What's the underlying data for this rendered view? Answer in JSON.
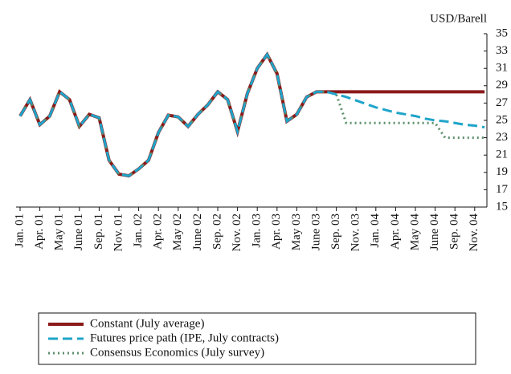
{
  "chart_data": {
    "type": "line",
    "y_axis_label": "USD/Barell",
    "categories": [
      "Jan. 01",
      null,
      "Apr. 01",
      null,
      "May 01",
      null,
      "June 01",
      null,
      "Sep. 01",
      null,
      "Nov. 01",
      null,
      "Jan. 02",
      null,
      "Apr. 02",
      null,
      "May 02",
      null,
      "June 02",
      null,
      "Sep. 02",
      null,
      "Nov. 02",
      null,
      "Jan. 03",
      null,
      "Apr. 03",
      null,
      "May 03",
      null,
      "June 03",
      null,
      "Sep. 03",
      null,
      "Nov. 03",
      null,
      "Jan. 04",
      null,
      "Apr. 04",
      null,
      "May 04",
      null,
      "June 04",
      null,
      "Sep. 04",
      null,
      "Nov. 04",
      null
    ],
    "series": [
      {
        "name": "Constant (July average)",
        "color": "#8b1a1a",
        "dash": "solid",
        "values": [
          25.5,
          27.4,
          24.5,
          25.5,
          28.3,
          27.4,
          24.3,
          25.7,
          25.3,
          20.4,
          18.8,
          18.6,
          19.4,
          20.4,
          23.6,
          25.6,
          25.4,
          24.3,
          25.7,
          26.8,
          28.3,
          27.4,
          23.7,
          28.1,
          31.0,
          32.6,
          30.4,
          24.9,
          25.7,
          27.7,
          28.3,
          28.3,
          28.3,
          28.3,
          28.3,
          28.3,
          28.3,
          28.3,
          28.3,
          28.3,
          28.3,
          28.3,
          28.3,
          28.3,
          28.3,
          28.3,
          28.3,
          28.3
        ]
      },
      {
        "name": "Consensus Economics (July survey)",
        "color": "#5c8f6c",
        "dash": "dotted",
        "values": [
          25.5,
          27.4,
          24.5,
          25.5,
          28.3,
          27.4,
          24.3,
          25.7,
          25.3,
          20.4,
          18.8,
          18.6,
          19.4,
          20.4,
          23.6,
          25.6,
          25.4,
          24.3,
          25.7,
          26.8,
          28.3,
          27.4,
          23.7,
          28.1,
          31.0,
          32.6,
          30.4,
          24.9,
          25.7,
          27.7,
          28.3,
          28.3,
          28.0,
          24.7,
          24.7,
          24.7,
          24.7,
          24.7,
          24.7,
          24.7,
          24.7,
          24.7,
          24.7,
          23.0,
          23.0,
          23.0,
          23.0,
          23.0
        ]
      },
      {
        "name": "Futures price path (IPE, July contracts)",
        "color": "#1fa4c9",
        "dash": "dashed",
        "values": [
          25.5,
          27.4,
          24.5,
          25.5,
          28.3,
          27.4,
          24.3,
          25.7,
          25.3,
          20.4,
          18.8,
          18.6,
          19.4,
          20.4,
          23.6,
          25.6,
          25.4,
          24.3,
          25.7,
          26.8,
          28.3,
          27.4,
          23.7,
          28.1,
          31.0,
          32.6,
          30.4,
          24.9,
          25.7,
          27.7,
          28.3,
          28.3,
          28.0,
          27.7,
          27.3,
          26.9,
          26.5,
          26.2,
          25.9,
          25.7,
          25.5,
          25.2,
          25.0,
          24.9,
          24.7,
          24.5,
          24.4,
          24.2
        ]
      }
    ],
    "legend_order": [
      0,
      2,
      1
    ],
    "ylim": [
      15,
      35
    ],
    "yticks": [
      15,
      17,
      19,
      21,
      23,
      25,
      27,
      29,
      31,
      33,
      35
    ]
  }
}
